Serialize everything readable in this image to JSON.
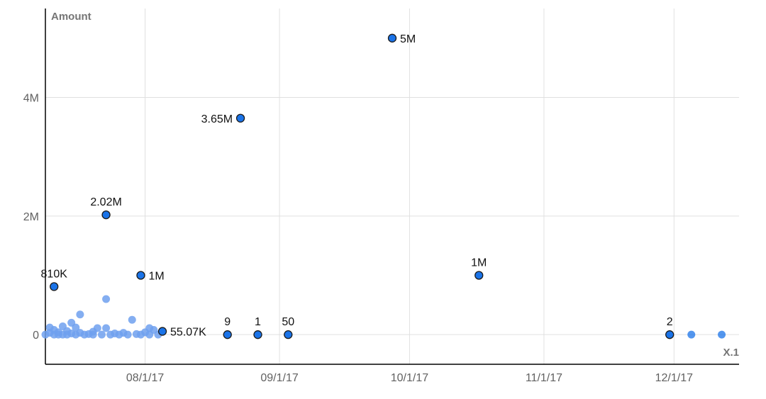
{
  "chart_data": {
    "type": "scatter",
    "ylabel": "Amount",
    "xlabel": "X.1",
    "x_ticks": [
      "2017-08-01",
      "2017-09-01",
      "2017-10-01",
      "2017-11-01",
      "2017-12-01"
    ],
    "x_tick_labels": [
      "08/1/17",
      "09/1/17",
      "10/1/17",
      "11/1/17",
      "12/1/17"
    ],
    "xlim": [
      "2017-07-09",
      "2017-12-16"
    ],
    "y_ticks": [
      0,
      2000000,
      4000000
    ],
    "y_tick_labels": [
      "0",
      "2M",
      "4M"
    ],
    "ylim": [
      -500000,
      5500000
    ],
    "grid": true,
    "colors": {
      "point": "#1a73e8",
      "point_faded": "#6fa0ef",
      "outline": "#1b1b1b",
      "grid": "#e0e0e0",
      "axis": "#000000"
    },
    "labeled_points": [
      {
        "x": "2017-07-11",
        "y": 810000,
        "label": "810K",
        "label_pos": "above"
      },
      {
        "x": "2017-07-23",
        "y": 2020000,
        "label": "2.02M",
        "label_pos": "above"
      },
      {
        "x": "2017-07-31",
        "y": 1000000,
        "label": "1M",
        "label_pos": "right"
      },
      {
        "x": "2017-08-05",
        "y": 55070,
        "label": "55.07K",
        "label_pos": "right"
      },
      {
        "x": "2017-08-23",
        "y": 3650000,
        "label": "3.65M",
        "label_pos": "left"
      },
      {
        "x": "2017-08-20",
        "y": 9,
        "label": "9",
        "label_pos": "above"
      },
      {
        "x": "2017-08-27",
        "y": 1,
        "label": "1",
        "label_pos": "above"
      },
      {
        "x": "2017-09-03",
        "y": 50,
        "label": "50",
        "label_pos": "above"
      },
      {
        "x": "2017-09-27",
        "y": 5000000,
        "label": "5M",
        "label_pos": "right"
      },
      {
        "x": "2017-10-17",
        "y": 1000000,
        "label": "1M",
        "label_pos": "above"
      },
      {
        "x": "2017-11-30",
        "y": 2,
        "label": "2",
        "label_pos": "above"
      }
    ],
    "unlabeled_points": [
      {
        "x": "2017-12-05",
        "y": 0
      },
      {
        "x": "2017-12-12",
        "y": 0
      }
    ],
    "cluster_points": [
      {
        "x": "2017-07-09",
        "y": 0
      },
      {
        "x": "2017-07-10",
        "y": 30000
      },
      {
        "x": "2017-07-10",
        "y": 120000
      },
      {
        "x": "2017-07-11",
        "y": 0
      },
      {
        "x": "2017-07-11",
        "y": 80000
      },
      {
        "x": "2017-07-12",
        "y": 0
      },
      {
        "x": "2017-07-12",
        "y": 40000
      },
      {
        "x": "2017-07-13",
        "y": 140000
      },
      {
        "x": "2017-07-13",
        "y": 0
      },
      {
        "x": "2017-07-14",
        "y": 60000
      },
      {
        "x": "2017-07-14",
        "y": 0
      },
      {
        "x": "2017-07-15",
        "y": 200000
      },
      {
        "x": "2017-07-15",
        "y": 20000
      },
      {
        "x": "2017-07-16",
        "y": 120000
      },
      {
        "x": "2017-07-16",
        "y": 0
      },
      {
        "x": "2017-07-17",
        "y": 340000
      },
      {
        "x": "2017-07-17",
        "y": 30000
      },
      {
        "x": "2017-07-18",
        "y": 0
      },
      {
        "x": "2017-07-19",
        "y": 10000
      },
      {
        "x": "2017-07-20",
        "y": 50000
      },
      {
        "x": "2017-07-20",
        "y": 0
      },
      {
        "x": "2017-07-21",
        "y": 110000
      },
      {
        "x": "2017-07-22",
        "y": 0
      },
      {
        "x": "2017-07-23",
        "y": 600000
      },
      {
        "x": "2017-07-23",
        "y": 110000
      },
      {
        "x": "2017-07-24",
        "y": 0
      },
      {
        "x": "2017-07-25",
        "y": 20000
      },
      {
        "x": "2017-07-26",
        "y": 0
      },
      {
        "x": "2017-07-27",
        "y": 30000
      },
      {
        "x": "2017-07-28",
        "y": 0
      },
      {
        "x": "2017-07-29",
        "y": 250000
      },
      {
        "x": "2017-07-30",
        "y": 10000
      },
      {
        "x": "2017-07-31",
        "y": 0
      },
      {
        "x": "2017-08-01",
        "y": 40000
      },
      {
        "x": "2017-08-02",
        "y": 110000
      },
      {
        "x": "2017-08-02",
        "y": 0
      },
      {
        "x": "2017-08-03",
        "y": 80000
      },
      {
        "x": "2017-08-04",
        "y": 0
      }
    ]
  }
}
